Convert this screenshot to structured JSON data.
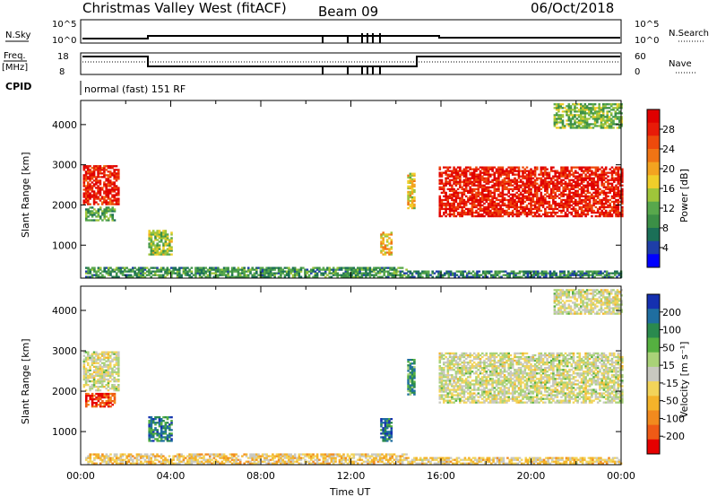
{
  "header": {
    "title": "Christmas Valley West (fitACF)",
    "beam": "Beam 09",
    "date": "06/Oct/2018"
  },
  "status_panel": {
    "nsky_label": "N.Sky",
    "nsearch_label": "N.Search",
    "noise_ticks_left": [
      "10^5",
      "10^0"
    ],
    "noise_ticks_right": [
      "10^5",
      "10^0"
    ],
    "freq_label": "Freq.",
    "freq_unit": "[MHz]",
    "freq_ticks": [
      "18",
      "8"
    ],
    "nave_label": "Nave",
    "nave_ticks": [
      "60",
      "0"
    ],
    "cpid_label": "CPID",
    "cpid_text": "normal (fast) 151 RF"
  },
  "chart_data": [
    {
      "type": "heatmap",
      "title": "",
      "xlabel": "",
      "ylabel": "Slant Range [km]",
      "x_range_hours": [
        0,
        24
      ],
      "y_range_km": [
        180,
        4600
      ],
      "yticks": [
        1000,
        2000,
        3000,
        4000
      ],
      "colorbar": {
        "label": "Power [dB]",
        "ticks": [
          "4",
          "8",
          "12",
          "16",
          "20",
          "24",
          "28"
        ],
        "colors": [
          "#0000ff",
          "#1e3ea8",
          "#1b6f57",
          "#3b8f46",
          "#58a84c",
          "#9fc53a",
          "#f0ce2a",
          "#f3a320",
          "#f07414",
          "#ee4a0c",
          "#e81b08",
          "#e00000"
        ]
      },
      "regions": [
        {
          "t0": 0.1,
          "t1": 1.7,
          "r0": 2000,
          "r1": 2950,
          "level": 0.88
        },
        {
          "t0": 0.2,
          "t1": 1.5,
          "r0": 1600,
          "r1": 1950,
          "level": 0.35
        },
        {
          "t0": 3.0,
          "t1": 4.0,
          "r0": 750,
          "r1": 1350,
          "level": 0.45
        },
        {
          "t0": 13.3,
          "t1": 13.8,
          "r0": 750,
          "r1": 1300,
          "level": 0.6
        },
        {
          "t0": 14.5,
          "t1": 14.8,
          "r0": 1900,
          "r1": 2800,
          "level": 0.55
        },
        {
          "t0": 15.9,
          "t1": 24.0,
          "r0": 1700,
          "r1": 2950,
          "level": 0.9
        },
        {
          "t0": 21.0,
          "t1": 24.0,
          "r0": 3900,
          "r1": 4500,
          "level": 0.4
        },
        {
          "t0": 0.2,
          "t1": 14.5,
          "r0": 190,
          "r1": 420,
          "level": 0.3
        },
        {
          "t0": 14.5,
          "t1": 24.0,
          "r0": 190,
          "r1": 330,
          "level": 0.25
        }
      ]
    },
    {
      "type": "heatmap",
      "title": "",
      "xlabel": "Time UT",
      "ylabel": "Slant Range [km]",
      "x_range_hours": [
        0,
        24
      ],
      "xticks": [
        "00:00",
        "04:00",
        "08:00",
        "12:00",
        "16:00",
        "20:00",
        "00:00"
      ],
      "y_range_km": [
        180,
        4600
      ],
      "yticks": [
        1000,
        2000,
        3000,
        4000
      ],
      "colorbar": {
        "label": "Velocity [m s⁻¹]",
        "ticks": [
          "200",
          "100",
          "50",
          "15",
          "-15",
          "-50",
          "-100",
          "-200"
        ],
        "colors": [
          "#1530b0",
          "#1f6ea0",
          "#2a8a4e",
          "#55b040",
          "#a9d278",
          "#c8c8c0",
          "#f2d45a",
          "#f4b32a",
          "#f28a1e",
          "#ef5a16",
          "#e60000"
        ]
      },
      "regions": [
        {
          "t0": 0.1,
          "t1": 1.7,
          "r0": 2000,
          "r1": 2950,
          "level": 0.5
        },
        {
          "t0": 0.2,
          "t1": 1.5,
          "r0": 1600,
          "r1": 1950,
          "level": 0.9
        },
        {
          "t0": 3.0,
          "t1": 4.0,
          "r0": 750,
          "r1": 1350,
          "level": 0.2
        },
        {
          "t0": 13.3,
          "t1": 13.8,
          "r0": 750,
          "r1": 1300,
          "level": 0.15
        },
        {
          "t0": 14.5,
          "t1": 14.8,
          "r0": 1900,
          "r1": 2800,
          "level": 0.25
        },
        {
          "t0": 15.9,
          "t1": 24.0,
          "r0": 1700,
          "r1": 2950,
          "level": 0.5
        },
        {
          "t0": 21.0,
          "t1": 24.0,
          "r0": 3900,
          "r1": 4500,
          "level": 0.5
        },
        {
          "t0": 0.2,
          "t1": 14.5,
          "r0": 190,
          "r1": 420,
          "level": 0.62
        },
        {
          "t0": 14.5,
          "t1": 24.0,
          "r0": 190,
          "r1": 330,
          "level": 0.6
        }
      ]
    }
  ],
  "colors": {
    "frame": "#000000",
    "background": "#ffffff"
  }
}
